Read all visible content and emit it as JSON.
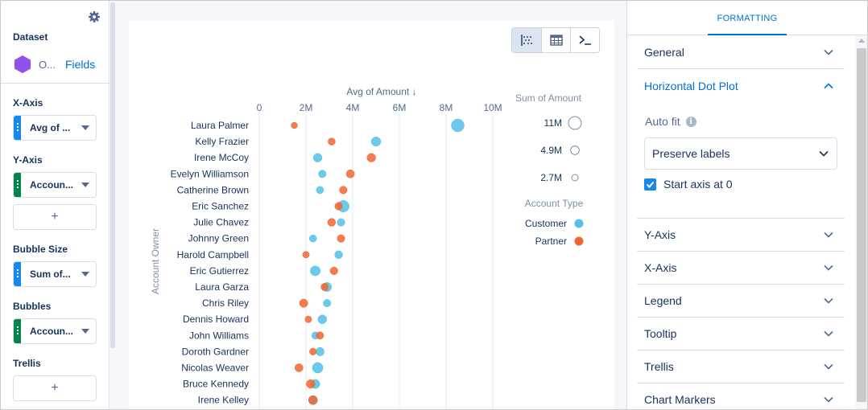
{
  "left_panel": {
    "dataset_label": "Dataset",
    "dataset_name": "O...",
    "fields_link": "Fields",
    "x_axis": {
      "label": "X-Axis",
      "pill": "Avg of ...",
      "color": "#1589ee"
    },
    "y_axis": {
      "label": "Y-Axis",
      "pill": "Accoun...",
      "color": "#04844b",
      "add": "+"
    },
    "bubble_size": {
      "label": "Bubble Size",
      "pill": "Sum of...",
      "color": "#1589ee"
    },
    "bubbles": {
      "label": "Bubbles",
      "pill": "Accoun...",
      "color": "#04844b"
    },
    "trellis": {
      "label": "Trellis",
      "add": "+"
    }
  },
  "toolbar": {
    "icons": [
      "chart-icon",
      "table-icon",
      "query-icon"
    ]
  },
  "chart_data": {
    "type": "scatter",
    "subtype": "horizontal-dot-plot",
    "xlabel": "Avg of Amount ↓",
    "ylabel": "Account Owner",
    "x_ticks": [
      "0",
      "2M",
      "4M",
      "6M",
      "8M",
      "10M"
    ],
    "xlim": [
      0,
      10000000
    ],
    "grid": true,
    "categories": [
      "Laura Palmer",
      "Kelly Frazier",
      "Irene McCoy",
      "Evelyn Williamson",
      "Catherine Brown",
      "Eric Sanchez",
      "Julie Chavez",
      "Johnny Green",
      "Harold Campbell",
      "Eric Gutierrez",
      "Laura Garza",
      "Chris Riley",
      "Dennis Howard",
      "John Williams",
      "Doroth Gardner",
      "Nicolas Weaver",
      "Bruce Kennedy",
      "Irene Kelley"
    ],
    "series": [
      {
        "name": "Customer",
        "color": "#54c0e8",
        "x": [
          8500000,
          5000000,
          2500000,
          2700000,
          2600000,
          3600000,
          3500000,
          2300000,
          3400000,
          2400000,
          2900000,
          2900000,
          2700000,
          2400000,
          2600000,
          2500000,
          2400000,
          2300000
        ],
        "size": [
          11000000,
          6000000,
          5000000,
          3800000,
          3600000,
          9000000,
          4000000,
          3500000,
          4200000,
          6600000,
          5700000,
          3800000,
          5200000,
          3500000,
          4800000,
          7500000,
          5600000,
          5500000
        ]
      },
      {
        "name": "Partner",
        "color": "#f26532",
        "x": [
          1500000,
          3100000,
          4800000,
          3900000,
          3600000,
          3400000,
          3100000,
          3500000,
          2000000,
          3200000,
          2800000,
          1900000,
          2100000,
          2600000,
          2300000,
          1700000,
          2200000,
          2300000
        ],
        "size": [
          2700000,
          3500000,
          5000000,
          4500000,
          4000000,
          4000000,
          4200000,
          3900000,
          3000000,
          4000000,
          3800000,
          4700000,
          3000000,
          3700000,
          3200000,
          4500000,
          5000000,
          5200000
        ]
      }
    ],
    "size_legend": {
      "title": "Sum of Amount",
      "entries": [
        "11M",
        "4.9M",
        "2.7M"
      ]
    },
    "color_legend": {
      "title": "Account Type",
      "entries": [
        "Customer",
        "Partner"
      ]
    },
    "legend_position": "right"
  },
  "right_panel": {
    "tab": "FORMATTING",
    "sections": [
      "General",
      "Horizontal Dot Plot",
      "Y-Axis",
      "X-Axis",
      "Legend",
      "Tooltip",
      "Trellis",
      "Chart Markers"
    ],
    "auto_fit_label": "Auto fit",
    "auto_fit_value": "Preserve labels",
    "start_axis_label": "Start axis at 0",
    "start_axis_checked": true
  }
}
